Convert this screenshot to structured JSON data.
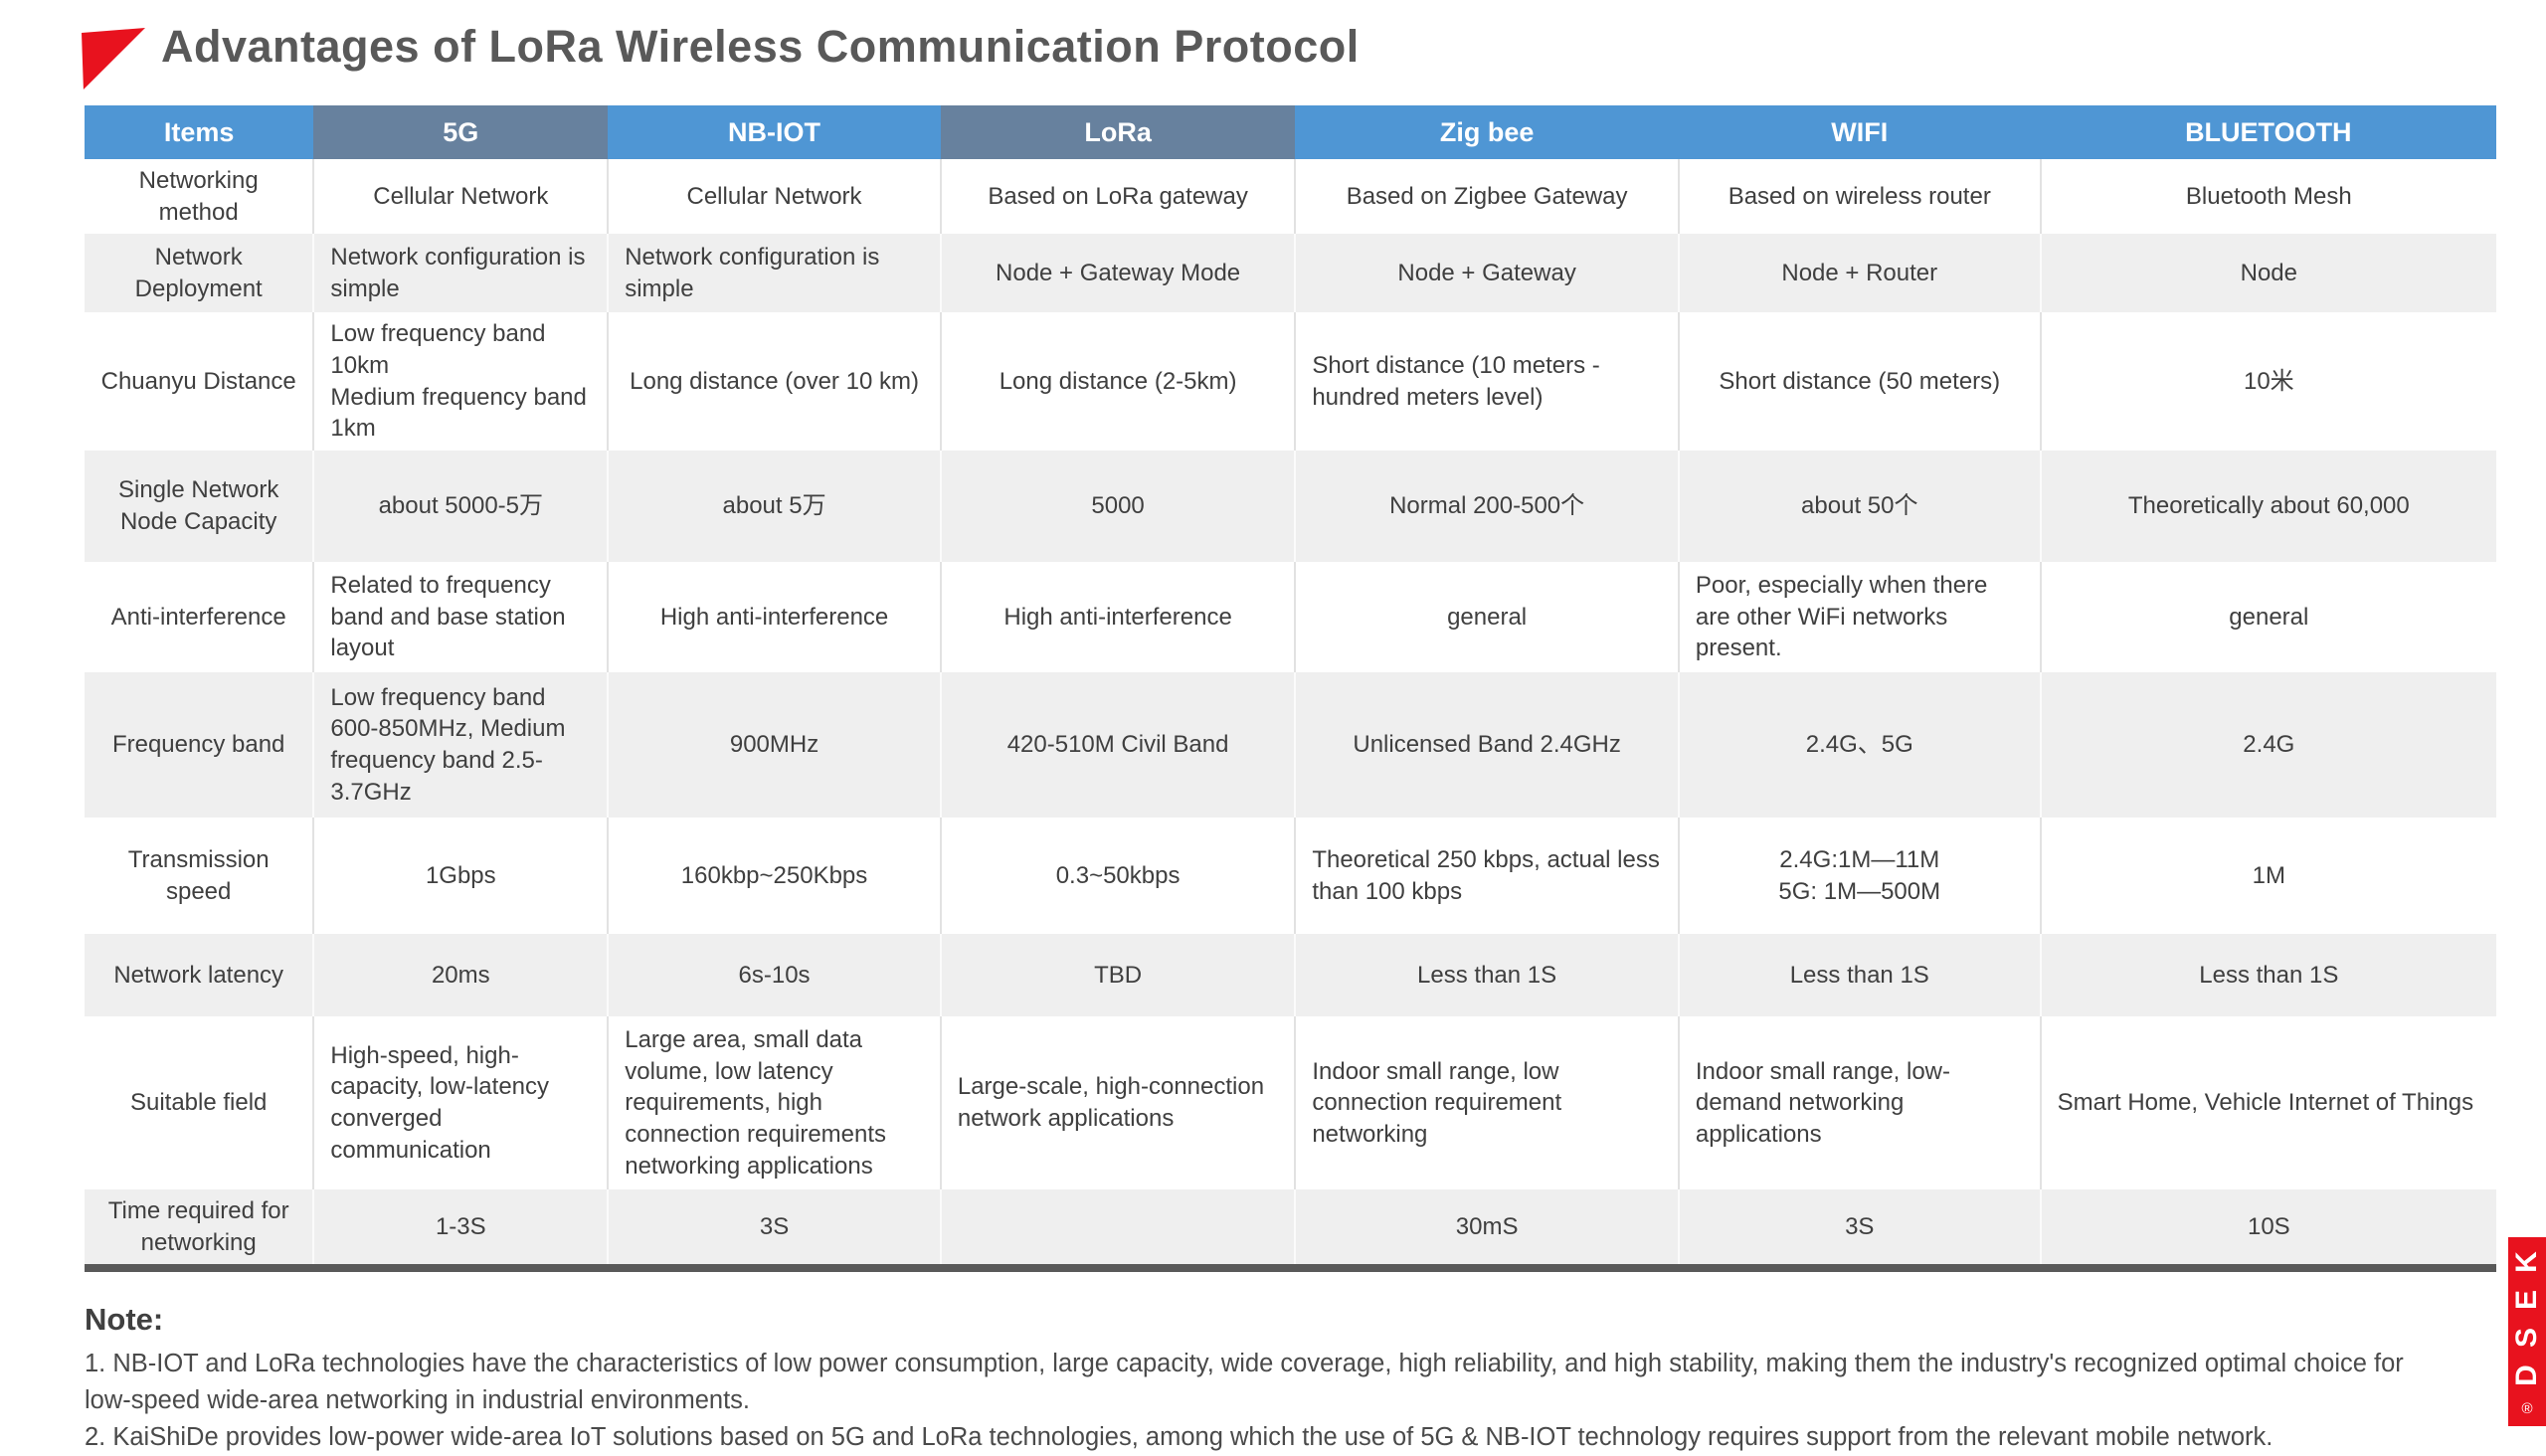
{
  "title": "Advantages of LoRa Wireless Communication Protocol",
  "colors": {
    "header_blue": "#4f96d4",
    "header_slate": "#67819e",
    "row_alt_gray": "#efefef",
    "accent_red": "#e8121e",
    "title_text": "#595959",
    "cell_text": "#3f3f3f",
    "table_bottom_bar": "#595959"
  },
  "table": {
    "columns": [
      {
        "label": "Items",
        "variant": "blue"
      },
      {
        "label": "5G",
        "variant": "slate"
      },
      {
        "label": "NB-IOT",
        "variant": "blue"
      },
      {
        "label": "LoRa",
        "variant": "slate"
      },
      {
        "label": "Zig bee",
        "variant": "blue"
      },
      {
        "label": "WIFI",
        "variant": "blue"
      },
      {
        "label": "BLUETOOTH",
        "variant": "blue"
      }
    ],
    "rows": [
      {
        "item": "Networking method",
        "cells": [
          "Cellular Network",
          "Cellular Network",
          "Based on LoRa gateway",
          "Based on Zigbee Gateway",
          "Based on wireless router",
          "Bluetooth Mesh"
        ]
      },
      {
        "item": "Network Deployment",
        "cells": [
          "Network configuration is simple",
          "Network configuration is simple",
          "Node + Gateway Mode",
          "Node + Gateway",
          "Node + Router",
          "Node"
        ]
      },
      {
        "item": "Chuanyu Distance",
        "cells": [
          "Low frequency band 10km\nMedium frequency band 1km",
          "Long distance (over 10 km)",
          "Long distance (2-5km)",
          "Short distance (10 meters - hundred meters level)",
          "Short distance (50 meters)",
          "10米"
        ]
      },
      {
        "item": "Single Network Node Capacity",
        "cells": [
          "about 5000-5万",
          "about 5万",
          "5000",
          "Normal 200-500个",
          "about 50个",
          "Theoretically about 60,000"
        ]
      },
      {
        "item": "Anti-interference",
        "cells": [
          "Related to frequency band and base station layout",
          "High anti-interference",
          "High anti-interference",
          "general",
          "Poor, especially when there are other WiFi networks present.",
          "general"
        ]
      },
      {
        "item": "Frequency band",
        "cells": [
          "Low frequency band 600-850MHz, Medium frequency band 2.5-3.7GHz",
          "900MHz",
          "420-510M Civil Band",
          "Unlicensed Band 2.4GHz",
          "2.4G、5G",
          "2.4G"
        ]
      },
      {
        "item": "Transmission speed",
        "cells": [
          "1Gbps",
          "160kbp~250Kbps",
          "0.3~50kbps",
          "Theoretical 250 kbps, actual less than 100 kbps",
          "2.4G:1M—11M\n5G: 1M—500M",
          "1M"
        ]
      },
      {
        "item": "Network latency",
        "cells": [
          "20ms",
          "6s-10s",
          "TBD",
          "Less than 1S",
          "Less than 1S",
          "Less than 1S"
        ]
      },
      {
        "item": "Suitable field",
        "cells": [
          "High-speed, high-capacity, low-latency converged communication",
          "Large area, small data volume, low latency requirements, high connection requirements networking applications",
          "Large-scale, high-connection network applications",
          "Indoor small range, low connection requirement networking",
          "Indoor small range, low-demand networking applications",
          "Smart Home, Vehicle Internet of Things"
        ]
      },
      {
        "item": "Time required for networking",
        "cells": [
          "1-3S",
          "3S",
          "",
          "30mS",
          "3S",
          "10S"
        ]
      }
    ]
  },
  "note": {
    "heading": "Note:",
    "lines": [
      "1. NB-IOT and LoRa technologies have the characteristics of low power consumption, large capacity, wide coverage, high reliability, and high stability, making them the industry's recognized optimal choice for low-speed wide-area networking in industrial environments.",
      "2. KaiShiDe provides low-power wide-area IoT solutions based on 5G and LoRa technologies, among which the use of 5G & NB-IOT technology requires support from the relevant mobile network."
    ]
  },
  "logo": {
    "text": "KESD",
    "registered_mark": "®"
  }
}
